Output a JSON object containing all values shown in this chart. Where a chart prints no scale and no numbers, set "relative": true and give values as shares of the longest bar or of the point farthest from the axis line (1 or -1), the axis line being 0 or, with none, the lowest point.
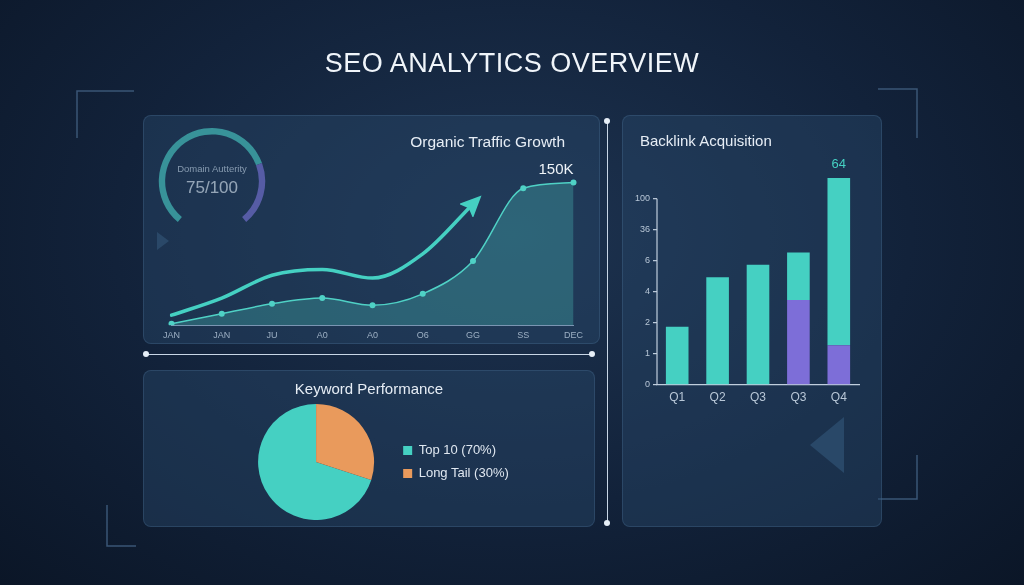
{
  "chart_data": [
    {
      "type": "other",
      "title": "SEO ANALYTICS OVERVIEW"
    },
    {
      "type": "donut",
      "title": "Domain Autterity",
      "categories": [
        null,
        null
      ],
      "values": [
        75,
        25
      ],
      "colors": [
        "#45d0c2",
        "#7d6ed8"
      ],
      "annotations": [
        "75/100"
      ]
    },
    {
      "type": "area",
      "title": "Organic Traffic Growth",
      "relative": true,
      "categories": [
        "JAN",
        "JAN",
        "JU",
        "A0",
        "A0",
        "O6",
        "GG",
        "SS",
        "DEC"
      ],
      "series": [
        {
          "type": "line",
          "color": "#45d0c2",
          "marker": "none",
          "values": [
            0.07,
            0.19,
            0.35,
            0.39,
            0.33,
            0.5,
            0.85,
            null,
            null
          ]
        },
        {
          "type": "area",
          "color": "#4fd1c5",
          "marker": "circle",
          "values": [
            0.01,
            0.08,
            0.15,
            0.19,
            0.14,
            0.22,
            0.45,
            0.96,
            1
          ]
        }
      ],
      "annotations": [
        {
          "text": "150K",
          "x": "DEC",
          "y": 1
        }
      ],
      "grid": false
    },
    {
      "type": "bar",
      "title": "Backlink Acquisition",
      "stacked": true,
      "relative": true,
      "categories": [
        "Q1",
        "Q2",
        "Q3",
        "Q3",
        "Q4"
      ],
      "series": [
        {
          "color": "#7d6ed8",
          "values": [
            null,
            null,
            null,
            0.41,
            0.19
          ]
        },
        {
          "color": "#45d0c2",
          "values": [
            0.28,
            0.52,
            0.58,
            0.23,
            0.81
          ]
        }
      ],
      "annotations": [
        "0",
        "1",
        "2",
        "4",
        "6",
        "36",
        "100",
        {
          "text": "64",
          "x": "Q4",
          "y": 1
        }
      ],
      "grid": false
    },
    {
      "type": "pie",
      "title": "Keyword Performance",
      "categories": [
        "Top 10 (70%)",
        "Long Tail (30%)"
      ],
      "values": [
        70,
        30
      ],
      "colors": [
        "#45d0c2",
        "#e99a5c"
      ],
      "legend": "right"
    }
  ]
}
